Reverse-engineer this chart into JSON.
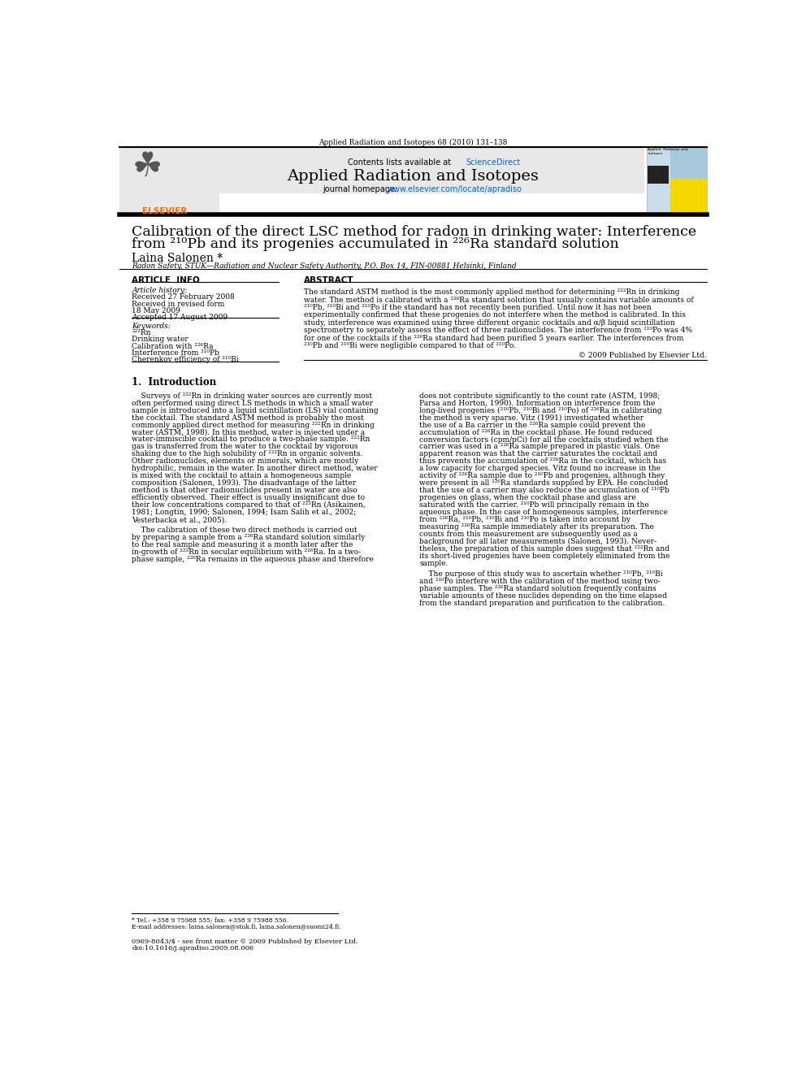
{
  "page_width": 9.92,
  "page_height": 13.23,
  "bg_color": "#ffffff",
  "top_citation": "Applied Radiation and Isotopes 68 (2010) 131–138",
  "header_bg": "#e8e8e8",
  "header_text1": "Contents lists available at ",
  "header_scidir": "ScienceDirect",
  "header_scidir_color": "#0066cc",
  "journal_name": "Applied Radiation and Isotopes",
  "journal_homepage_prefix": "journal homepage: ",
  "journal_homepage_url": "www.elsevier.com/locate/apradiso",
  "journal_homepage_url_color": "#0066cc",
  "title_line1": "Calibration of the direct LSC method for radon in drinking water: Interference",
  "title_line2": "from ²¹⁰Pb and its progenies accumulated in ²²⁶Ra standard solution",
  "author": "Laina Salonen *",
  "affiliation": "Radon Safety, STUK—Radiation and Nuclear Safety Authority, P.O. Box 14, FIN-00881 Helsinki, Finland",
  "article_info_header": "ARTICLE  INFO",
  "abstract_header": "ABSTRACT",
  "article_history_label": "Article history:",
  "received1": "Received 27 February 2008",
  "received_revised": "Received in revised form",
  "revised_date": "18 May 2009",
  "accepted": "Accepted 17 August 2009",
  "keywords_label": "Keywords:",
  "keyword1": "²²²Rn",
  "keyword2": "Drinking water",
  "keyword3": "Calibration with ²²⁶Ra",
  "keyword4": "Interference from ²¹⁰Pb",
  "keyword5": "Cherenkov efficiency of ²¹⁰Bi",
  "copyright": "© 2009 Published by Elsevier Ltd.",
  "section1_title": "1.  Introduction",
  "footnote1": "* Tel.: +358 9 75988 555; fax: +358 9 75988 556.",
  "footnote2": "E-mail addresses: laina.salonen@stuk.fi, laina.salonen@suomi24.fi.",
  "footer1": "0969-8043/$ - see front matter © 2009 Published by Elsevier Ltd.",
  "footer2": "doi:10.1016/j.apradiso.2009.08.006",
  "link_color": "#0066cc",
  "elsevier_color": "#FF6600",
  "abstract_lines": [
    "The standard ASTM method is the most commonly applied method for determining ²²²Rn in drinking",
    "water. The method is calibrated with a ²²⁶Ra standard solution that usually contains variable amounts of",
    "²¹⁰Pb, ²¹⁰Bi and ²¹⁰Po if the standard has not recently been purified. Until now it has not been",
    "experimentally confirmed that these progenies do not interfere when the method is calibrated. In this",
    "study, interference was examined using three different organic cocktails and α/β liquid scintillation",
    "spectrometry to separately assess the effect of three radionuclides. The interference from ²¹⁰Po was 4%",
    "for one of the cocktails if the ²²⁶Ra standard had been purified 5 years earlier. The interferences from",
    "²¹⁰Pb and ²¹⁰Bi were negligible compared to that of ²¹⁰Po."
  ],
  "col1_lines": [
    "    Surveys of ²²²Rn in drinking water sources are currently most",
    "often performed using direct LS methods in which a small water",
    "sample is introduced into a liquid scintillation (LS) vial containing",
    "the cocktail. The standard ASTM method is probably the most",
    "commonly applied direct method for measuring ²²²Rn in drinking",
    "water (ASTM, 1998). In this method, water is injected under a",
    "water-immiscible cocktail to produce a two-phase sample. ²²²Rn",
    "gas is transferred from the water to the cocktail by vigorous",
    "shaking due to the high solubility of ²²²Rn in organic solvents.",
    "Other radionuclides, elements or minerals, which are mostly",
    "hydrophilic, remain in the water. In another direct method, water",
    "is mixed with the cocktail to attain a homogeneous sample",
    "composition (Salonen, 1993). The disadvantage of the latter",
    "method is that other radionuclides present in water are also",
    "efficiently observed. Their effect is usually insignificant due to",
    "their low concentrations compared to that of ²²²Rn (Asikainen,",
    "1981; Longtin, 1990; Salonen, 1994; Isam Salih et al., 2002;",
    "Vesterbacka et al., 2005)."
  ],
  "col1_p2_lines": [
    "    The calibration of these two direct methods is carried out",
    "by preparing a sample from a ²²⁶Ra standard solution similarly",
    "to the real sample and measuring it a month later after the",
    "in-growth of ²²²Rn in secular equilibrium with ²²⁶Ra. In a two-",
    "phase sample, ²²⁶Ra remains in the aqueous phase and therefore"
  ],
  "col2_lines": [
    "does not contribute significantly to the count rate (ASTM, 1998;",
    "Parsa and Horton, 1990). Information on interference from the",
    "long-lived progenies (²¹⁰Pb, ²¹⁰Bi and ²¹⁰Po) of ²²⁶Ra in calibrating",
    "the method is very sparse. Vitz (1991) investigated whether",
    "the use of a Ba carrier in the ²²⁶Ra sample could prevent the",
    "accumulation of ²²⁶Ra in the cocktail phase. He found reduced",
    "conversion factors (cpm/pCi) for all the cocktails studied when the",
    "carrier was used in a ²²⁶Ra sample prepared in plastic vials. One",
    "apparent reason was that the carrier saturates the cocktail and",
    "thus prevents the accumulation of ²²⁶Ra in the cocktail, which has",
    "a low capacity for charged species. Vitz found no increase in the",
    "activity of ²²⁶Ra sample due to ²¹⁰Pb and progenies, although they",
    "were present in all ²²⁶Ra standards supplied by EPA. He concluded",
    "that the use of a carrier may also reduce the accumulation of ²¹⁰Pb",
    "progenies on glass, when the cocktail phase and glass are",
    "saturated with the carrier. ²¹⁰Pb will principally remain in the",
    "aqueous phase. In the case of homogeneous samples, interference",
    "from ²²⁶Ra, ²¹⁰Pb, ²¹⁰Bi and ²¹⁰Po is taken into account by",
    "measuring ²²⁶Ra sample immediately after its preparation. The",
    "counts from this measurement are subsequently used as a",
    "background for all later measurements (Salonen, 1993). Never-",
    "theless, the preparation of this sample does suggest that ²²²Rn and",
    "its short-lived progenies have been completely eliminated from the",
    "sample."
  ],
  "col2_p2_lines": [
    "    The purpose of this study was to ascertain whether ²¹⁰Pb, ²¹⁰Bi",
    "and ²¹⁰Po interfere with the calibration of the method using two-",
    "phase samples. The ²²⁶Ra standard solution frequently contains",
    "variable amounts of these nuclides depending on the time elapsed",
    "from the standard preparation and purification to the calibration."
  ]
}
